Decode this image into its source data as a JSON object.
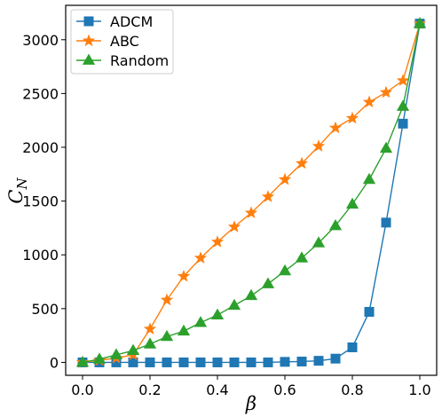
{
  "chart_data": {
    "type": "line",
    "title": "",
    "xlabel": "β",
    "ylabel": "C",
    "ylabel_sub": "N",
    "xlim": [
      -0.05,
      1.05
    ],
    "ylim": [
      -120,
      3320
    ],
    "xticks": [
      0.0,
      0.2,
      0.4,
      0.6,
      0.8,
      1.0
    ],
    "xtick_labels": [
      "0.0",
      "0.2",
      "0.4",
      "0.6",
      "0.8",
      "1.0"
    ],
    "yticks": [
      0,
      500,
      1000,
      1500,
      2000,
      2500,
      3000
    ],
    "ytick_labels": [
      "0",
      "500",
      "1000",
      "1500",
      "2000",
      "2500",
      "3000"
    ],
    "grid": false,
    "legend_position": "top-left",
    "x": [
      0.0,
      0.05,
      0.1,
      0.15,
      0.2,
      0.25,
      0.3,
      0.35,
      0.4,
      0.45,
      0.5,
      0.55,
      0.6,
      0.65,
      0.7,
      0.75,
      0.8,
      0.85,
      0.9,
      0.95,
      1.0
    ],
    "series": [
      {
        "name": "ADCM",
        "color": "#1f77b4",
        "marker": "square",
        "values": [
          0,
          0,
          0,
          0,
          0,
          0,
          0,
          0,
          0,
          0,
          0,
          0,
          5,
          8,
          15,
          35,
          140,
          470,
          1300,
          2220,
          3150
        ]
      },
      {
        "name": "ABC",
        "color": "#ff7f0e",
        "marker": "star",
        "values": [
          0,
          20,
          40,
          70,
          310,
          580,
          800,
          970,
          1120,
          1260,
          1390,
          1540,
          1700,
          1850,
          2010,
          2180,
          2270,
          2420,
          2510,
          2620,
          3150
        ]
      },
      {
        "name": "Random",
        "color": "#2ca02c",
        "marker": "triangle",
        "values": [
          0,
          30,
          70,
          110,
          170,
          240,
          290,
          370,
          440,
          530,
          620,
          730,
          850,
          970,
          1110,
          1270,
          1470,
          1700,
          1990,
          2380,
          3150
        ]
      }
    ]
  }
}
